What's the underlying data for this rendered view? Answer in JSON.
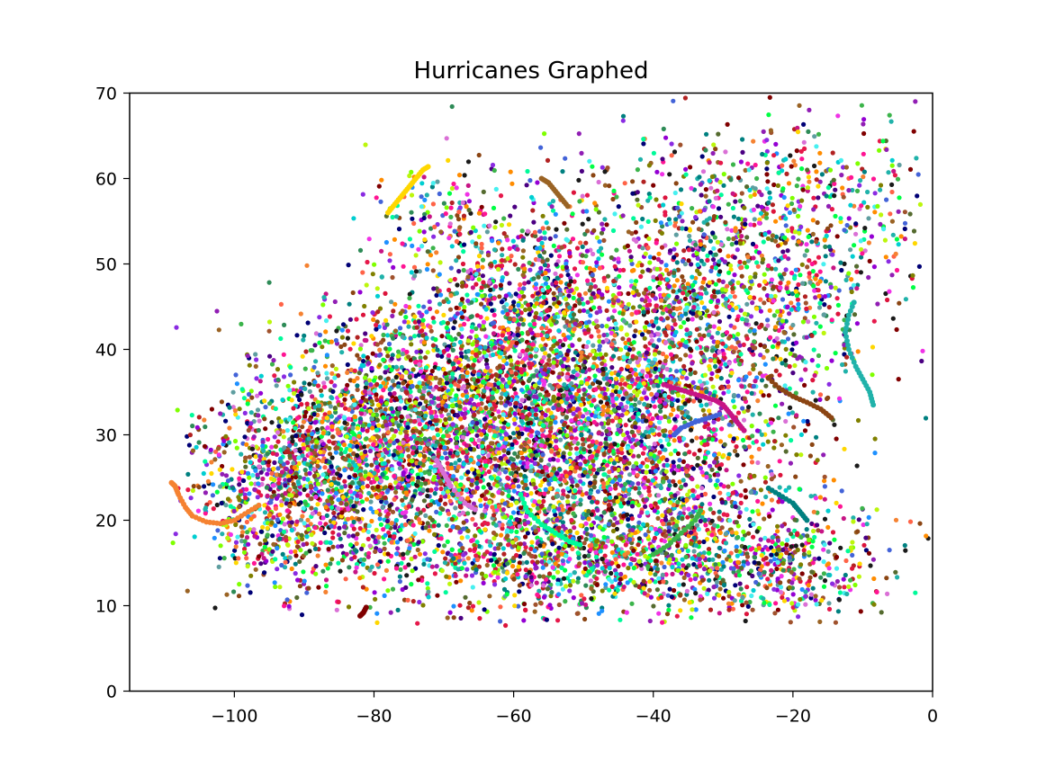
{
  "chart_data": {
    "type": "scatter",
    "title": "Hurricanes Graphed",
    "xlabel": "",
    "ylabel": "",
    "xlim": [
      -115,
      0
    ],
    "ylim": [
      0,
      70
    ],
    "xticks": [
      -100,
      -80,
      -60,
      -40,
      -20,
      0
    ],
    "yticks": [
      0,
      10,
      20,
      30,
      40,
      50,
      60,
      70
    ],
    "xtick_labels": [
      "−100",
      "−80",
      "−60",
      "−40",
      "−20",
      "0"
    ],
    "ytick_labels": [
      "0",
      "10",
      "20",
      "30",
      "40",
      "50",
      "60",
      "70"
    ],
    "grid": false,
    "legend": "none",
    "palette": [
      "#e6194b",
      "#3cb44b",
      "#4363d8",
      "#f58231",
      "#911eb4",
      "#46f0f0",
      "#f032e6",
      "#bcf60c",
      "#008080",
      "#9a6324",
      "#800000",
      "#808000",
      "#000075",
      "#00ff44",
      "#ff1493",
      "#1e90ff",
      "#ffd700",
      "#8b4513",
      "#2e8b57",
      "#9400d3",
      "#00ced1",
      "#ff6347",
      "#556b2f",
      "#da70d6",
      "#20b2aa",
      "#b22222",
      "#7fff00",
      "#dc143c",
      "#4b0082",
      "#ff8c00",
      "#00fa9a",
      "#c71585",
      "#1a1a1a",
      "#8a2be2",
      "#5f9ea0",
      "#a0522d"
    ],
    "tracks": [
      {
        "points": [
          [
            -109,
            24.4
          ],
          [
            -108.5,
            24
          ],
          [
            -108,
            23
          ],
          [
            -107,
            21.5
          ],
          [
            -106,
            20.5
          ],
          [
            -104,
            19.8
          ],
          [
            -102,
            19.6
          ],
          [
            -100,
            20
          ],
          [
            -98,
            21
          ],
          [
            -96,
            22
          ]
        ]
      },
      {
        "points": [
          [
            -82,
            8.8
          ],
          [
            -81.5,
            9.2
          ],
          [
            -81,
            10
          ]
        ]
      },
      {
        "points": [
          [
            -14.5,
            32
          ],
          [
            -16,
            33
          ],
          [
            -18,
            33.8
          ],
          [
            -20,
            34.5
          ],
          [
            -22,
            35.5
          ],
          [
            -24,
            37
          ]
        ]
      },
      {
        "points": [
          [
            -8.5,
            33.5
          ],
          [
            -9,
            35
          ],
          [
            -10,
            36.5
          ],
          [
            -11,
            38
          ],
          [
            -12,
            40
          ],
          [
            -12.5,
            42
          ],
          [
            -12,
            44
          ],
          [
            -11,
            46
          ]
        ]
      },
      {
        "points": [
          [
            -27,
            30.5
          ],
          [
            -28,
            31.5
          ],
          [
            -29,
            32.5
          ],
          [
            -30,
            33.5
          ],
          [
            -31,
            34
          ],
          [
            -33,
            34.5
          ],
          [
            -35,
            35
          ],
          [
            -37,
            35.5
          ],
          [
            -39,
            36
          ]
        ]
      },
      {
        "points": [
          [
            -37,
            30
          ],
          [
            -36,
            30.8
          ],
          [
            -34,
            31.5
          ],
          [
            -32,
            32
          ],
          [
            -30,
            32.5
          ]
        ]
      },
      {
        "points": [
          [
            -56,
            60
          ],
          [
            -55,
            59.5
          ],
          [
            -54,
            58.5
          ],
          [
            -53,
            57.5
          ],
          [
            -52,
            56.5
          ]
        ]
      },
      {
        "points": [
          [
            -78,
            56
          ],
          [
            -77,
            57
          ],
          [
            -76,
            58
          ],
          [
            -75,
            59
          ],
          [
            -74,
            60
          ],
          [
            -73,
            61
          ],
          [
            -72,
            61.5
          ]
        ]
      },
      {
        "points": [
          [
            -71,
            27
          ],
          [
            -70,
            25.5
          ],
          [
            -69,
            24
          ],
          [
            -67,
            22
          ],
          [
            -65,
            21
          ]
        ]
      },
      {
        "points": [
          [
            -59,
            23
          ],
          [
            -58,
            21
          ],
          [
            -56,
            19.5
          ],
          [
            -54,
            18.5
          ],
          [
            -52,
            17.5
          ],
          [
            -50,
            17
          ]
        ]
      },
      {
        "points": [
          [
            -40,
            16
          ],
          [
            -38,
            17
          ],
          [
            -36,
            18.5
          ],
          [
            -34,
            20
          ],
          [
            -33,
            21.5
          ]
        ]
      },
      {
        "points": [
          [
            -18,
            20
          ],
          [
            -19,
            21
          ],
          [
            -20,
            22
          ],
          [
            -22,
            23
          ],
          [
            -24,
            24
          ]
        ]
      }
    ]
  }
}
